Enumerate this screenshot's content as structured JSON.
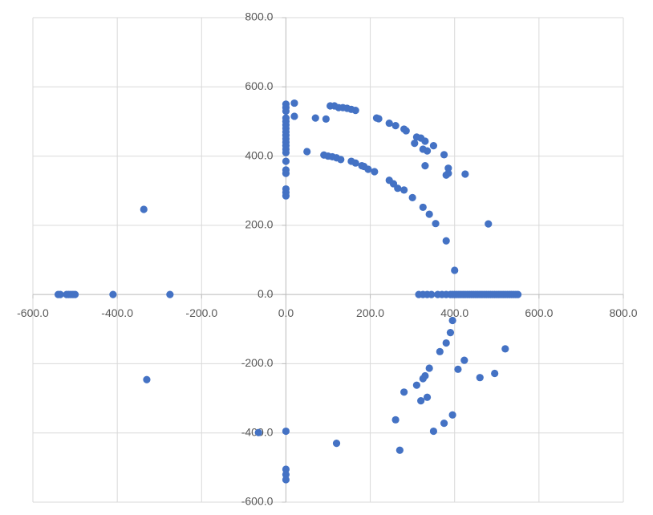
{
  "chart_data": {
    "type": "scatter",
    "color": "#4472c4",
    "grid": true,
    "xlim": [
      -600,
      800
    ],
    "ylim": [
      -600,
      800
    ],
    "xticks": [
      {
        "value": -600,
        "label": "-600.0"
      },
      {
        "value": -400,
        "label": "-400.0"
      },
      {
        "value": -200,
        "label": "-200.0"
      },
      {
        "value": 0,
        "label": "0.0"
      },
      {
        "value": 200,
        "label": "200.0"
      },
      {
        "value": 400,
        "label": "400.0"
      },
      {
        "value": 600,
        "label": "600.0"
      },
      {
        "value": 800,
        "label": "800.0"
      }
    ],
    "yticks": [
      {
        "value": -600,
        "label": "-600.0"
      },
      {
        "value": -400,
        "label": "-400.0"
      },
      {
        "value": -200,
        "label": "-200.0"
      },
      {
        "value": 0,
        "label": "0.0"
      },
      {
        "value": 200,
        "label": "200.0"
      },
      {
        "value": 400,
        "label": "400.0"
      },
      {
        "value": 600,
        "label": "600.0"
      },
      {
        "value": 800,
        "label": "800.0"
      }
    ],
    "x": [
      -540,
      -535,
      -520,
      -515,
      -510,
      -505,
      -500,
      -410,
      -275,
      -337,
      -330,
      -65,
      0,
      0,
      0,
      0,
      0,
      0,
      0,
      0,
      0,
      0,
      0,
      0,
      0,
      0,
      0,
      0,
      0,
      0,
      0,
      0,
      0,
      0,
      0,
      0,
      20,
      20,
      70,
      95,
      105,
      115,
      125,
      135,
      145,
      155,
      165,
      215,
      220,
      245,
      260,
      280,
      285,
      305,
      310,
      320,
      325,
      330,
      335,
      350,
      375,
      385,
      380,
      385,
      330,
      425,
      480,
      50,
      90,
      100,
      110,
      120,
      130,
      155,
      165,
      180,
      185,
      195,
      210,
      245,
      255,
      265,
      280,
      300,
      325,
      340,
      355,
      380,
      400,
      315,
      325,
      335,
      345,
      360,
      370,
      380,
      390,
      395,
      400,
      405,
      410,
      415,
      420,
      425,
      430,
      435,
      440,
      445,
      450,
      455,
      460,
      465,
      470,
      475,
      480,
      485,
      490,
      495,
      500,
      505,
      510,
      515,
      520,
      525,
      530,
      535,
      540,
      545,
      550,
      395,
      390,
      380,
      365,
      408,
      423,
      460,
      495,
      520,
      340,
      330,
      325,
      310,
      280,
      335,
      320,
      260,
      395,
      375,
      350,
      270,
      120
    ],
    "values": [
      0,
      0,
      0,
      0,
      0,
      0,
      0,
      0,
      0,
      246,
      -246,
      -399,
      550,
      540,
      530,
      510,
      500,
      490,
      480,
      470,
      460,
      450,
      440,
      430,
      420,
      410,
      385,
      360,
      350,
      305,
      295,
      285,
      -395,
      -505,
      -520,
      -535,
      553,
      515,
      510,
      507,
      545,
      545,
      540,
      540,
      538,
      535,
      532,
      510,
      508,
      495,
      488,
      478,
      473,
      437,
      455,
      452,
      420,
      443,
      415,
      430,
      404,
      365,
      345,
      350,
      372,
      348,
      204,
      413,
      403,
      400,
      398,
      395,
      390,
      385,
      380,
      372,
      370,
      362,
      355,
      330,
      320,
      307,
      302,
      280,
      252,
      232,
      205,
      155,
      70,
      0,
      0,
      0,
      0,
      0,
      0,
      0,
      0,
      0,
      0,
      0,
      0,
      0,
      0,
      0,
      0,
      0,
      0,
      0,
      0,
      0,
      0,
      0,
      0,
      0,
      0,
      0,
      0,
      0,
      0,
      0,
      0,
      0,
      0,
      0,
      0,
      0,
      0,
      0,
      0,
      -75,
      -110,
      -140,
      -165,
      -216,
      -190,
      -240,
      -228,
      -157,
      -213,
      -235,
      -243,
      -262,
      -282,
      -297,
      -307,
      -362,
      -348,
      -372,
      -395,
      -450,
      -430
    ]
  }
}
